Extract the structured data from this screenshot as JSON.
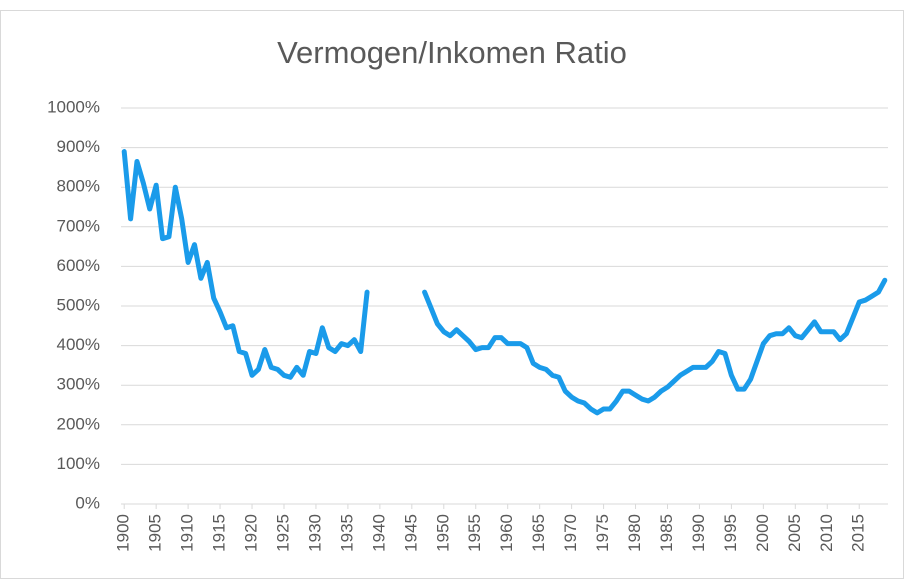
{
  "chart_data": {
    "type": "line",
    "title": "Vermogen/Inkomen Ratio",
    "x": [
      1900,
      1901,
      1902,
      1903,
      1904,
      1905,
      1906,
      1907,
      1908,
      1909,
      1910,
      1911,
      1912,
      1913,
      1914,
      1915,
      1916,
      1917,
      1918,
      1919,
      1920,
      1921,
      1922,
      1923,
      1924,
      1925,
      1926,
      1927,
      1928,
      1929,
      1930,
      1931,
      1932,
      1933,
      1934,
      1935,
      1936,
      1937,
      1938,
      1939,
      1940,
      1941,
      1942,
      1943,
      1944,
      1945,
      1946,
      1947,
      1948,
      1949,
      1950,
      1951,
      1952,
      1953,
      1954,
      1955,
      1956,
      1957,
      1958,
      1959,
      1960,
      1961,
      1962,
      1963,
      1964,
      1965,
      1966,
      1967,
      1968,
      1969,
      1970,
      1971,
      1972,
      1973,
      1974,
      1975,
      1976,
      1977,
      1978,
      1979,
      1980,
      1981,
      1982,
      1983,
      1984,
      1985,
      1986,
      1987,
      1988,
      1989,
      1990,
      1991,
      1992,
      1993,
      1994,
      1995,
      1996,
      1997,
      1998,
      1999,
      2000,
      2001,
      2002,
      2003,
      2004,
      2005,
      2006,
      2007,
      2008,
      2009,
      2010,
      2011,
      2012,
      2013,
      2014,
      2015,
      2016,
      2017,
      2018,
      2019
    ],
    "values": [
      890,
      720,
      865,
      810,
      745,
      805,
      670,
      675,
      800,
      720,
      610,
      655,
      570,
      610,
      520,
      485,
      445,
      450,
      385,
      380,
      325,
      340,
      390,
      345,
      340,
      325,
      320,
      345,
      325,
      385,
      380,
      445,
      395,
      385,
      405,
      400,
      415,
      385,
      535,
      null,
      null,
      null,
      null,
      null,
      null,
      null,
      null,
      535,
      495,
      455,
      435,
      425,
      440,
      425,
      410,
      390,
      395,
      395,
      420,
      420,
      405,
      405,
      405,
      395,
      355,
      345,
      340,
      325,
      320,
      285,
      270,
      260,
      255,
      240,
      230,
      240,
      240,
      260,
      285,
      285,
      275,
      265,
      260,
      270,
      285,
      295,
      310,
      325,
      335,
      345,
      345,
      345,
      360,
      385,
      380,
      325,
      290,
      290,
      315,
      360,
      405,
      425,
      430,
      430,
      445,
      425,
      420,
      440,
      460,
      435,
      435,
      435,
      415,
      430,
      470,
      510,
      515,
      525,
      535,
      565
    ],
    "color": "#1a9bea",
    "xlim": [
      1899.5,
      2019.5
    ],
    "xticks": [
      1900,
      1905,
      1910,
      1915,
      1920,
      1925,
      1930,
      1935,
      1940,
      1945,
      1950,
      1955,
      1960,
      1965,
      1970,
      1975,
      1980,
      1985,
      1990,
      1995,
      2000,
      2005,
      2010,
      2015
    ],
    "ylim": [
      0,
      1000
    ],
    "yticks": [
      {
        "value": 0,
        "label": "0%"
      },
      {
        "value": 100,
        "label": "100%"
      },
      {
        "value": 200,
        "label": "200%"
      },
      {
        "value": 300,
        "label": "300%"
      },
      {
        "value": 400,
        "label": "400%"
      },
      {
        "value": 500,
        "label": "500%"
      },
      {
        "value": 600,
        "label": "600%"
      },
      {
        "value": 700,
        "label": "700%"
      },
      {
        "value": 800,
        "label": "800%"
      },
      {
        "value": 900,
        "label": "900%"
      },
      {
        "value": 1000,
        "label": "1000%"
      }
    ],
    "grid": true
  }
}
